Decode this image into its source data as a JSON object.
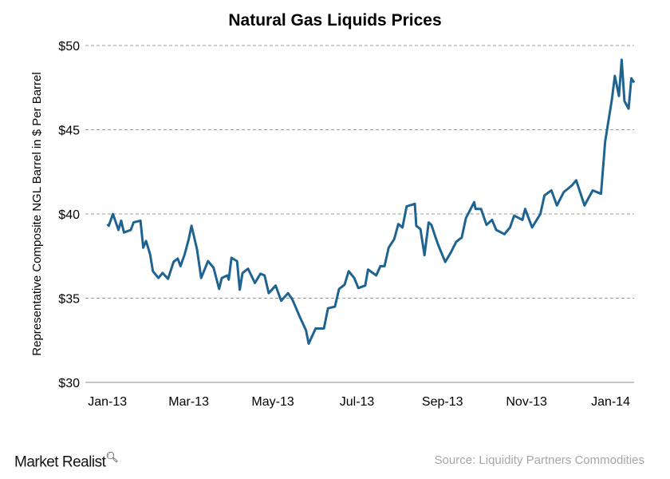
{
  "chart_data": {
    "type": "line",
    "title": "Natural Gas Liquids Prices",
    "xlabel": "",
    "ylabel": "Representative Composite NGL Barrel in $ Per Barrel",
    "ylim": [
      30,
      50
    ],
    "xlim": [
      "2012-12-16",
      "2014-01-18"
    ],
    "y_ticks": [
      {
        "v": 30,
        "label": "$30"
      },
      {
        "v": 35,
        "label": "$35"
      },
      {
        "v": 40,
        "label": "$40"
      },
      {
        "v": 45,
        "label": "$45"
      },
      {
        "v": 50,
        "label": "$50"
      }
    ],
    "x_ticks": [
      {
        "d": "2013-01-01",
        "label": "Jan-13"
      },
      {
        "d": "2013-03-01",
        "label": "Mar-13"
      },
      {
        "d": "2013-05-01",
        "label": "May-13"
      },
      {
        "d": "2013-07-01",
        "label": "Jul-13"
      },
      {
        "d": "2013-09-01",
        "label": "Sep-13"
      },
      {
        "d": "2013-11-01",
        "label": "Nov-13"
      },
      {
        "d": "2014-01-01",
        "label": "Jan-14"
      }
    ],
    "grid": "horizontal dashed",
    "legend": "none",
    "line_color": "#1f6391",
    "series": [
      {
        "x": [
          "2013-01-01",
          "2013-01-02",
          "2013-01-05",
          "2013-01-09",
          "2013-01-11",
          "2013-01-13",
          "2013-01-18",
          "2013-01-20",
          "2013-01-25",
          "2013-01-27",
          "2013-01-29",
          "2013-02-01",
          "2013-02-03",
          "2013-02-07",
          "2013-02-10",
          "2013-02-14",
          "2013-02-18",
          "2013-02-21",
          "2013-02-23",
          "2013-02-26",
          "2013-03-01",
          "2013-03-03",
          "2013-03-07",
          "2013-03-10",
          "2013-03-15",
          "2013-03-19",
          "2013-03-23",
          "2013-03-25",
          "2013-03-29",
          "2013-03-30",
          "2013-04-01",
          "2013-04-05",
          "2013-04-07",
          "2013-04-09",
          "2013-04-13",
          "2013-04-18",
          "2013-04-22",
          "2013-04-25",
          "2013-04-28",
          "2013-05-03",
          "2013-05-07",
          "2013-05-12",
          "2013-05-15",
          "2013-05-21",
          "2013-05-25",
          "2013-05-27",
          "2013-06-01",
          "2013-06-07",
          "2013-06-10",
          "2013-06-15",
          "2013-06-18",
          "2013-06-22",
          "2013-06-25",
          "2013-06-29",
          "2013-07-02",
          "2013-07-07",
          "2013-07-09",
          "2013-07-15",
          "2013-07-18",
          "2013-07-21",
          "2013-07-24",
          "2013-07-28",
          "2013-07-31",
          "2013-08-03",
          "2013-08-06",
          "2013-08-12",
          "2013-08-13",
          "2013-08-16",
          "2013-08-19",
          "2013-08-22",
          "2013-08-24",
          "2013-08-27",
          "2013-08-29",
          "2013-09-03",
          "2013-09-07",
          "2013-09-11",
          "2013-09-15",
          "2013-09-18",
          "2013-09-24",
          "2013-09-25",
          "2013-09-29",
          "2013-10-03",
          "2013-10-07",
          "2013-10-10",
          "2013-10-16",
          "2013-10-20",
          "2013-10-23",
          "2013-10-29",
          "2013-10-31",
          "2013-11-05",
          "2013-11-11",
          "2013-11-14",
          "2013-11-19",
          "2013-11-23",
          "2013-11-28",
          "2013-12-04",
          "2013-12-07",
          "2013-12-13",
          "2013-12-19",
          "2013-12-25",
          "2013-12-28",
          "2014-01-02",
          "2014-01-04",
          "2014-01-07",
          "2014-01-09",
          "2014-01-11",
          "2014-01-14",
          "2014-01-16",
          "2014-01-18"
        ],
        "y": [
          39.4,
          39.3,
          40.0,
          39.05,
          39.6,
          38.9,
          39.05,
          39.5,
          39.6,
          38.0,
          38.4,
          37.6,
          36.6,
          36.2,
          36.5,
          36.15,
          37.15,
          37.35,
          36.9,
          37.6,
          38.5,
          39.3,
          37.9,
          36.2,
          37.2,
          36.8,
          35.55,
          36.2,
          36.35,
          36.1,
          37.4,
          37.2,
          35.5,
          36.5,
          36.75,
          35.9,
          36.45,
          36.35,
          35.3,
          35.75,
          34.85,
          35.3,
          34.95,
          33.8,
          33.1,
          32.3,
          33.2,
          33.2,
          34.4,
          34.5,
          35.55,
          35.8,
          36.6,
          36.2,
          35.6,
          35.75,
          36.7,
          36.35,
          36.9,
          36.9,
          38.0,
          38.5,
          39.4,
          39.2,
          40.45,
          40.6,
          39.3,
          39.1,
          37.55,
          39.5,
          39.35,
          38.6,
          38.15,
          37.15,
          37.7,
          38.35,
          38.6,
          39.75,
          40.7,
          40.3,
          40.3,
          39.35,
          39.65,
          39.05,
          38.8,
          39.2,
          39.9,
          39.65,
          40.3,
          39.2,
          40.0,
          41.1,
          41.4,
          40.5,
          41.3,
          41.7,
          42.0,
          40.5,
          41.4,
          41.2,
          44.3,
          46.85,
          48.2,
          47.0,
          49.15,
          46.7,
          46.25,
          48.05,
          47.8
        ]
      }
    ]
  },
  "footer": {
    "brand": "Market Realist",
    "source": "Source: Liquidity Partners Commodities"
  }
}
